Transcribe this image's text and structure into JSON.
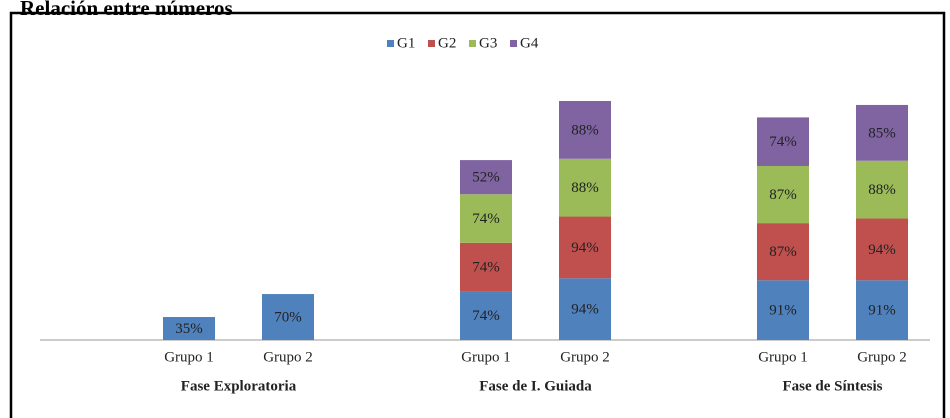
{
  "chart_data": {
    "type": "stacked_bar",
    "title": "Relación entre números",
    "categories": [
      "Grupo 1",
      "Grupo 2",
      "Grupo 1",
      "Grupo 2",
      "Grupo 1",
      "Grupo 2"
    ],
    "groups": [
      "Fase Exploratoria",
      "Fase de I. Guiada",
      "Fase de Síntesis"
    ],
    "series": [
      {
        "name": "G1",
        "color": "#4f81bd",
        "values": [
          35,
          70,
          74,
          94,
          91,
          91
        ],
        "value_labels": [
          "35%",
          "70%",
          "74%",
          "94%",
          "91%",
          "91%"
        ]
      },
      {
        "name": "G2",
        "color": "#c0504d",
        "values": [
          null,
          null,
          74,
          94,
          87,
          94
        ],
        "value_labels": [
          null,
          null,
          "74%",
          "94%",
          "87%",
          "94%"
        ]
      },
      {
        "name": "G3",
        "color": "#9bbb59",
        "values": [
          null,
          null,
          74,
          88,
          87,
          88
        ],
        "value_labels": [
          null,
          null,
          "74%",
          "88%",
          "87%",
          "88%"
        ]
      },
      {
        "name": "G4",
        "color": "#8064a2",
        "values": [
          null,
          null,
          52,
          88,
          74,
          85
        ],
        "value_labels": [
          null,
          null,
          "52%",
          "88%",
          "74%",
          "85%"
        ]
      }
    ],
    "legend": "top"
  }
}
